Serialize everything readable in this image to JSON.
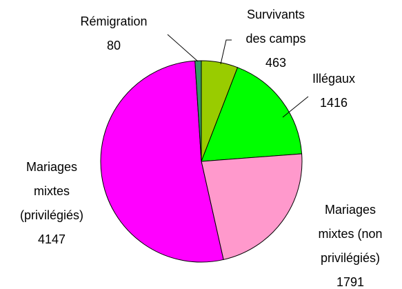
{
  "chart_data": {
    "type": "pie",
    "categories": [
      "Survivants des camps",
      "Illégaux",
      "Mariages mixtes (non privilégiés)",
      "Mariages mixtes (privilégiés)",
      "Rémigration"
    ],
    "values": [
      463,
      1416,
      1791,
      4147,
      80
    ],
    "colors": [
      "#99cc00",
      "#00ff00",
      "#ff99cc",
      "#ff00ff",
      "#339966"
    ]
  }
}
